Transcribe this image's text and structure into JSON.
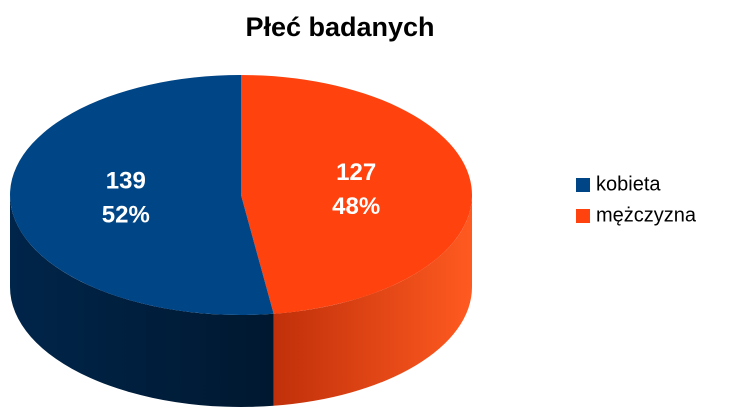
{
  "chart_data": {
    "type": "pie3d",
    "title": "Płeć badanych",
    "categories": [
      "kobieta",
      "mężczyzna"
    ],
    "values": [
      139,
      127
    ],
    "percent_labels": [
      "52%",
      "48%"
    ],
    "colors": [
      "#004586",
      "#ff420e"
    ],
    "legend": "right"
  }
}
